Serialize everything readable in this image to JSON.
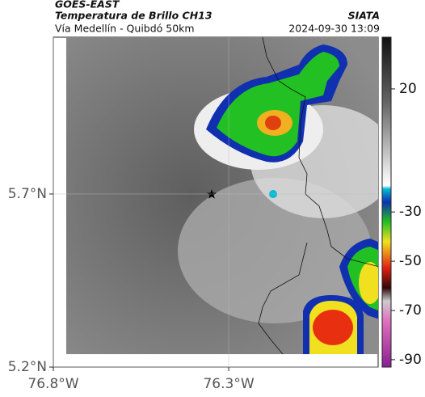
{
  "header": {
    "satellite": "GOES-EAST",
    "product": "Temperatura de Brillo CH13",
    "source": "SIATA",
    "route": "Vía Medellín - Quibdó 50km",
    "datetime": "2024-09-30 13:09"
  },
  "map": {
    "xlim": [
      -76.8,
      -75.874
    ],
    "ylim": [
      5.2,
      6.153
    ],
    "xticks": [
      {
        "value": -76.8,
        "label": "76.8°W"
      },
      {
        "value": -76.3,
        "label": "76.3°W"
      }
    ],
    "yticks": [
      {
        "value": 5.2,
        "label": "5.2°N"
      },
      {
        "value": 5.7,
        "label": "5.7°N"
      }
    ]
  },
  "colorbar": {
    "lim": [
      41,
      -93
    ],
    "ticks": [
      20,
      -30,
      -50,
      -70,
      -90
    ]
  }
}
